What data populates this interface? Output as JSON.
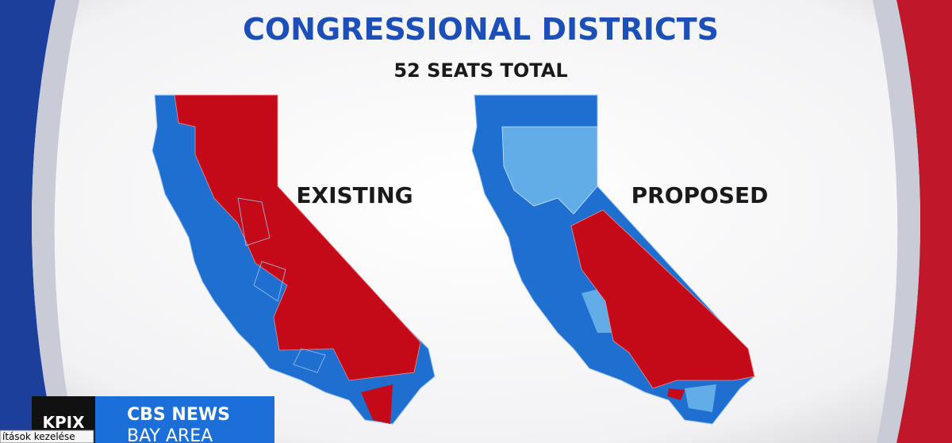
{
  "header": {
    "title": "CONGRESSIONAL DISTRICTS",
    "subtitle": "52 SEATS TOTAL"
  },
  "maps": [
    {
      "label": "EXISTING"
    },
    {
      "label": "PROPOSED"
    }
  ],
  "logo": {
    "station": "KPIX",
    "network": "CBS NEWS",
    "region": "BAY AREA"
  },
  "tooltip": {
    "text": "ítások kezelése"
  }
}
